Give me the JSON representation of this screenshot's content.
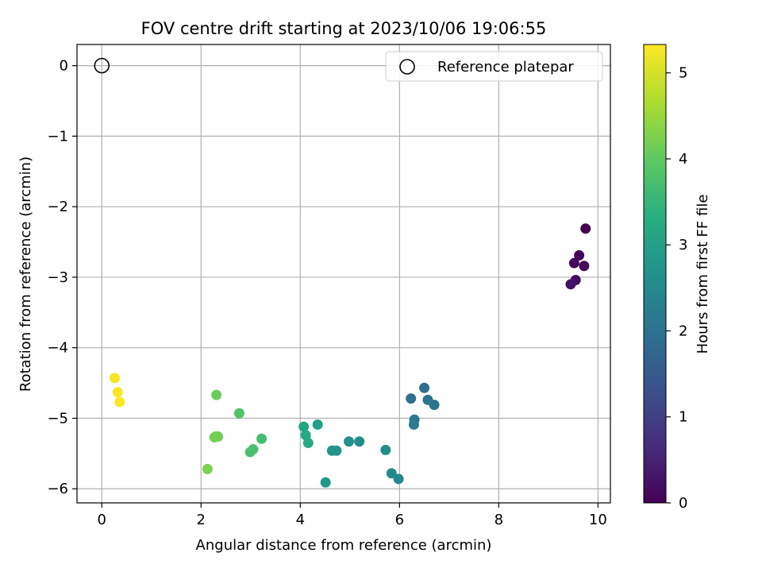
{
  "chart_data": {
    "type": "scatter",
    "title": "FOV centre drift starting at 2023/10/06 19:06:55",
    "xlabel": "Angular distance from reference (arcmin)",
    "ylabel": "Rotation from reference (arcmin)",
    "xlim": [
      -0.5,
      10.25
    ],
    "ylim": [
      -6.2,
      0.3
    ],
    "xticks": [
      0,
      2,
      4,
      6,
      8,
      10
    ],
    "xtick_labels": [
      "0",
      "2",
      "4",
      "6",
      "8",
      "10"
    ],
    "yticks": [
      0,
      -1,
      -2,
      -3,
      -4,
      -5,
      -6
    ],
    "ytick_labels": [
      "0",
      "−1",
      "−2",
      "−3",
      "−4",
      "−5",
      "−6"
    ],
    "grid": true,
    "legend": {
      "placement": "top-right",
      "entries": [
        {
          "label": "Reference platepar",
          "marker": "open-circle"
        }
      ]
    },
    "reference_point": {
      "x": 0,
      "y": 0
    },
    "colorbar": {
      "label": "Hours from first FF file",
      "colormap": "viridis",
      "range": [
        0,
        5.33
      ],
      "ticks": [
        0,
        1,
        2,
        3,
        4,
        5
      ],
      "tick_labels": [
        "0",
        "1",
        "2",
        "3",
        "4",
        "5"
      ]
    },
    "points": [
      {
        "x": 9.75,
        "y": -2.31,
        "c": 0.0
      },
      {
        "x": 9.62,
        "y": -2.69,
        "c": 0.05
      },
      {
        "x": 9.52,
        "y": -2.8,
        "c": 0.1
      },
      {
        "x": 9.72,
        "y": -2.84,
        "c": 0.15
      },
      {
        "x": 9.55,
        "y": -3.04,
        "c": 0.2
      },
      {
        "x": 9.45,
        "y": -3.1,
        "c": 0.25
      },
      {
        "x": 6.5,
        "y": -4.57,
        "c": 1.9
      },
      {
        "x": 6.23,
        "y": -4.72,
        "c": 1.95
      },
      {
        "x": 6.57,
        "y": -4.74,
        "c": 2.0
      },
      {
        "x": 6.7,
        "y": -4.81,
        "c": 2.05
      },
      {
        "x": 6.3,
        "y": -5.02,
        "c": 2.15
      },
      {
        "x": 6.29,
        "y": -5.09,
        "c": 2.2
      },
      {
        "x": 5.72,
        "y": -5.45,
        "c": 2.6
      },
      {
        "x": 5.84,
        "y": -5.78,
        "c": 2.55
      },
      {
        "x": 5.98,
        "y": -5.86,
        "c": 2.5
      },
      {
        "x": 5.19,
        "y": -5.33,
        "c": 2.65
      },
      {
        "x": 4.98,
        "y": -5.33,
        "c": 2.7
      },
      {
        "x": 4.64,
        "y": -5.46,
        "c": 2.8
      },
      {
        "x": 4.73,
        "y": -5.46,
        "c": 2.75
      },
      {
        "x": 4.51,
        "y": -5.91,
        "c": 2.85
      },
      {
        "x": 4.35,
        "y": -5.09,
        "c": 3.0
      },
      {
        "x": 4.07,
        "y": -5.12,
        "c": 3.1
      },
      {
        "x": 4.11,
        "y": -5.24,
        "c": 3.15
      },
      {
        "x": 4.16,
        "y": -5.35,
        "c": 3.2
      },
      {
        "x": 3.22,
        "y": -5.29,
        "c": 3.7
      },
      {
        "x": 3.05,
        "y": -5.44,
        "c": 3.75
      },
      {
        "x": 2.99,
        "y": -5.48,
        "c": 3.8
      },
      {
        "x": 2.77,
        "y": -4.93,
        "c": 3.85
      },
      {
        "x": 2.31,
        "y": -4.67,
        "c": 4.1
      },
      {
        "x": 2.34,
        "y": -5.26,
        "c": 4.1
      },
      {
        "x": 2.3,
        "y": -5.26,
        "c": 4.15
      },
      {
        "x": 2.27,
        "y": -5.27,
        "c": 4.2
      },
      {
        "x": 2.13,
        "y": -5.72,
        "c": 4.25
      },
      {
        "x": 0.26,
        "y": -4.43,
        "c": 5.25
      },
      {
        "x": 0.32,
        "y": -4.63,
        "c": 5.3
      },
      {
        "x": 0.36,
        "y": -4.77,
        "c": 5.33
      }
    ]
  }
}
